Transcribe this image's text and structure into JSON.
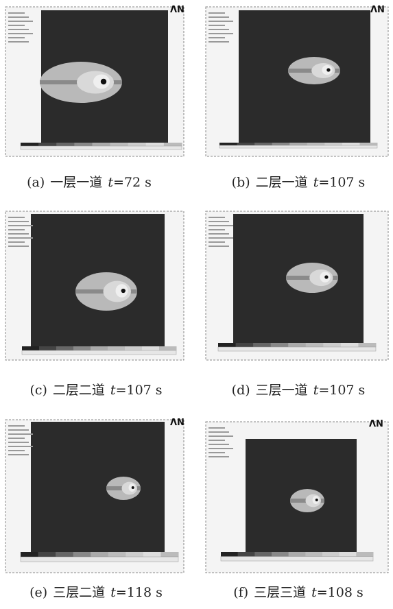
{
  "panels": [
    {
      "label": "(a)",
      "name": "一层一道",
      "var": "t",
      "time": "=72 s",
      "logo": "ΛN"
    },
    {
      "label": "(b)",
      "name": "二层一道",
      "var": "t",
      "time": "=107 s",
      "logo": "ΛN"
    },
    {
      "label": "(c)",
      "name": "二层二道",
      "var": "t",
      "time": "=107 s"
    },
    {
      "label": "(d)",
      "name": "三层一道",
      "var": "t",
      "time": "=107 s"
    },
    {
      "label": "(e)",
      "name": "三层二道",
      "var": "t",
      "time": "=118 s",
      "logo": "ΛN"
    },
    {
      "label": "(f)",
      "name": "三层三道",
      "var": "t",
      "time": "=108 s",
      "logo": "ΛN"
    }
  ]
}
